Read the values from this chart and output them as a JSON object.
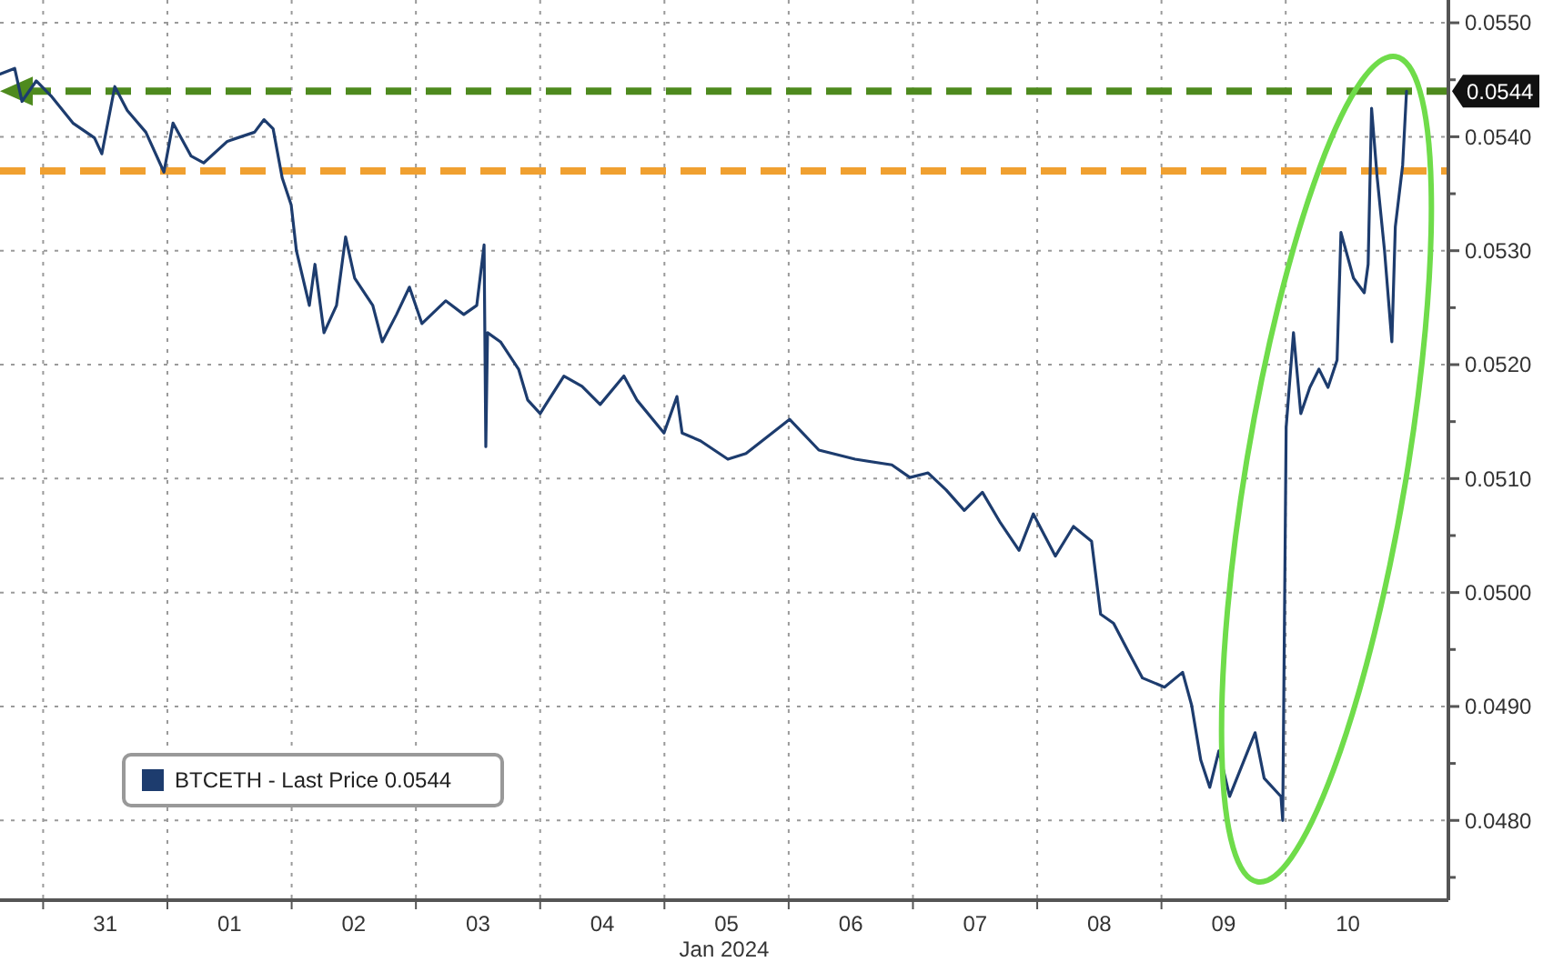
{
  "chart_data": {
    "type": "line",
    "xlabel": "Jan 2024",
    "xlim": [
      "2023-12-30T15:40",
      "2024-01-11T07:25"
    ],
    "xticks": [
      {
        "value": "2023-12-31T00:00",
        "label": null
      },
      {
        "value": "2023-12-31T12:00",
        "label": "31"
      },
      {
        "value": "2024-01-01T00:00",
        "label": null
      },
      {
        "value": "2024-01-01T12:00",
        "label": "01"
      },
      {
        "value": "2024-01-02T00:00",
        "label": null
      },
      {
        "value": "2024-01-02T12:00",
        "label": "02"
      },
      {
        "value": "2024-01-03T00:00",
        "label": null
      },
      {
        "value": "2024-01-03T12:00",
        "label": "03"
      },
      {
        "value": "2024-01-04T00:00",
        "label": null
      },
      {
        "value": "2024-01-04T12:00",
        "label": "04"
      },
      {
        "value": "2024-01-05T00:00",
        "label": null
      },
      {
        "value": "2024-01-05T12:00",
        "label": "05"
      },
      {
        "value": "2024-01-06T00:00",
        "label": null
      },
      {
        "value": "2024-01-06T12:00",
        "label": "06"
      },
      {
        "value": "2024-01-07T00:00",
        "label": null
      },
      {
        "value": "2024-01-07T12:00",
        "label": "07"
      },
      {
        "value": "2024-01-08T00:00",
        "label": null
      },
      {
        "value": "2024-01-08T12:00",
        "label": "08"
      },
      {
        "value": "2024-01-09T00:00",
        "label": null
      },
      {
        "value": "2024-01-09T12:00",
        "label": "09"
      },
      {
        "value": "2024-01-10T00:00",
        "label": null
      },
      {
        "value": "2024-01-10T12:00",
        "label": "10"
      }
    ],
    "ylim": [
      0.0473,
      0.0552
    ],
    "yticks": [
      {
        "value": 0.0475,
        "label": null
      },
      {
        "value": 0.048,
        "label": "0.0480"
      },
      {
        "value": 0.0485,
        "label": null
      },
      {
        "value": 0.049,
        "label": "0.0490"
      },
      {
        "value": 0.0495,
        "label": null
      },
      {
        "value": 0.05,
        "label": "0.0500"
      },
      {
        "value": 0.0505,
        "label": null
      },
      {
        "value": 0.051,
        "label": "0.0510"
      },
      {
        "value": 0.0515,
        "label": null
      },
      {
        "value": 0.052,
        "label": "0.0520"
      },
      {
        "value": 0.0525,
        "label": null
      },
      {
        "value": 0.053,
        "label": "0.0530"
      },
      {
        "value": 0.0535,
        "label": null
      },
      {
        "value": 0.054,
        "label": "0.0540"
      },
      {
        "value": 0.0545,
        "label": null
      },
      {
        "value": 0.055,
        "label": "0.0550"
      }
    ],
    "grid": true,
    "legend": "bottom left",
    "ref_lines": [
      {
        "axis": "y",
        "value": 0.0544,
        "label": "0.0544",
        "color": "#4e8a1e",
        "line_style": "dashed"
      },
      {
        "axis": "y",
        "value": 0.0537,
        "color": "#f0a030",
        "line_style": "dashed"
      }
    ],
    "series": [
      {
        "name": "BTCETH - Last Price 0.0544",
        "color": "#1d3c6e",
        "x": [
          "2023-12-30T15:40",
          "2023-12-30T18:30",
          "2023-12-30T19:55",
          "2023-12-30T22:40",
          "2023-12-31T01:30",
          "2023-12-31T05:45",
          "2023-12-31T09:55",
          "2023-12-31T11:20",
          "2023-12-31T13:50",
          "2023-12-31T16:15",
          "2023-12-31T19:50",
          "2023-12-31T23:20",
          "2024-01-01T01:05",
          "2024-01-01T04:35",
          "2024-01-01T07:00",
          "2024-01-01T11:35",
          "2024-01-01T16:50",
          "2024-01-01T18:40",
          "2024-01-01T20:25",
          "2024-01-01T22:10",
          "2024-01-01T23:55",
          "2024-01-02T00:55",
          "2024-01-02T03:25",
          "2024-01-02T04:30",
          "2024-01-02T06:15",
          "2024-01-02T08:40",
          "2024-01-02T10:25",
          "2024-01-02T12:10",
          "2024-01-02T15:40",
          "2024-01-02T17:30",
          "2024-01-02T20:15",
          "2024-01-02T22:45",
          "2024-01-03T01:10",
          "2024-01-03T05:45",
          "2024-01-03T09:15",
          "2024-01-03T11:45",
          "2024-01-03T13:10",
          "2024-01-03T13:30",
          "2024-01-03T13:50",
          "2024-01-03T16:20",
          "2024-01-03T19:50",
          "2024-01-03T21:35",
          "2024-01-04T00:00",
          "2024-01-04T01:05",
          "2024-01-04T04:35",
          "2024-01-04T08:05",
          "2024-01-04T11:35",
          "2024-01-04T16:10",
          "2024-01-04T18:40",
          "2024-01-04T23:55",
          "2024-01-05T02:25",
          "2024-01-05T03:25",
          "2024-01-05T07:00",
          "2024-01-05T12:15",
          "2024-01-05T15:45",
          "2024-01-06T00:10",
          "2024-01-06T05:50",
          "2024-01-06T12:50",
          "2024-01-06T19:55",
          "2024-01-06T23:25",
          "2024-01-07T02:55",
          "2024-01-07T06:25",
          "2024-01-07T09:55",
          "2024-01-07T13:25",
          "2024-01-07T16:55",
          "2024-01-07T20:30",
          "2024-01-07T23:15",
          "2024-01-08T03:30",
          "2024-01-08T07:00",
          "2024-01-08T10:30",
          "2024-01-08T12:15",
          "2024-01-08T14:45",
          "2024-01-08T17:30",
          "2024-01-08T20:20",
          "2024-01-09T00:35",
          "2024-01-09T04:05",
          "2024-01-09T05:50",
          "2024-01-09T07:35",
          "2024-01-09T09:20",
          "2024-01-09T11:05",
          "2024-01-09T13:10",
          "2024-01-09T18:05",
          "2024-01-09T19:50",
          "2024-01-09T23:05",
          "2024-01-09T23:25",
          "2024-01-10T00:05",
          "2024-01-10T01:30",
          "2024-01-10T02:55",
          "2024-01-10T04:40",
          "2024-01-10T06:25",
          "2024-01-10T08:10",
          "2024-01-10T09:55",
          "2024-01-10T10:40",
          "2024-01-10T13:05",
          "2024-01-10T15:10",
          "2024-01-10T15:55",
          "2024-01-10T16:35",
          "2024-01-10T17:40",
          "2024-01-10T19:05",
          "2024-01-10T20:30",
          "2024-01-10T21:10",
          "2024-01-10T22:35",
          "2024-01-10T23:20"
        ],
        "values": [
          0.05455,
          0.0546,
          0.05431,
          0.05449,
          0.05436,
          0.05412,
          0.05399,
          0.05385,
          0.05444,
          0.05423,
          0.05404,
          0.05369,
          0.05412,
          0.05383,
          0.05377,
          0.05396,
          0.05404,
          0.05415,
          0.05407,
          0.05364,
          0.0534,
          0.053,
          0.05252,
          0.05288,
          0.05228,
          0.05252,
          0.05312,
          0.05276,
          0.05252,
          0.0522,
          0.05244,
          0.05268,
          0.05236,
          0.05256,
          0.05244,
          0.05252,
          0.05305,
          0.05128,
          0.05228,
          0.0522,
          0.05196,
          0.05169,
          0.05157,
          0.05165,
          0.0519,
          0.05181,
          0.05165,
          0.0519,
          0.05169,
          0.0514,
          0.05172,
          0.0514,
          0.05133,
          0.05117,
          0.05122,
          0.05152,
          0.05125,
          0.05117,
          0.05112,
          0.05101,
          0.05105,
          0.0509,
          0.05072,
          0.05088,
          0.05061,
          0.05037,
          0.05069,
          0.05032,
          0.05058,
          0.05045,
          0.04981,
          0.04973,
          0.04949,
          0.04925,
          0.04917,
          0.0493,
          0.04901,
          0.04853,
          0.04829,
          0.04861,
          0.04821,
          0.04877,
          0.04837,
          0.04821,
          0.048,
          0.05145,
          0.05228,
          0.05157,
          0.0518,
          0.05196,
          0.0518,
          0.05204,
          0.05316,
          0.05276,
          0.05263,
          0.05288,
          0.05425,
          0.05364,
          0.053,
          0.0522,
          0.05321,
          0.05375,
          0.0544
        ]
      }
    ]
  }
}
